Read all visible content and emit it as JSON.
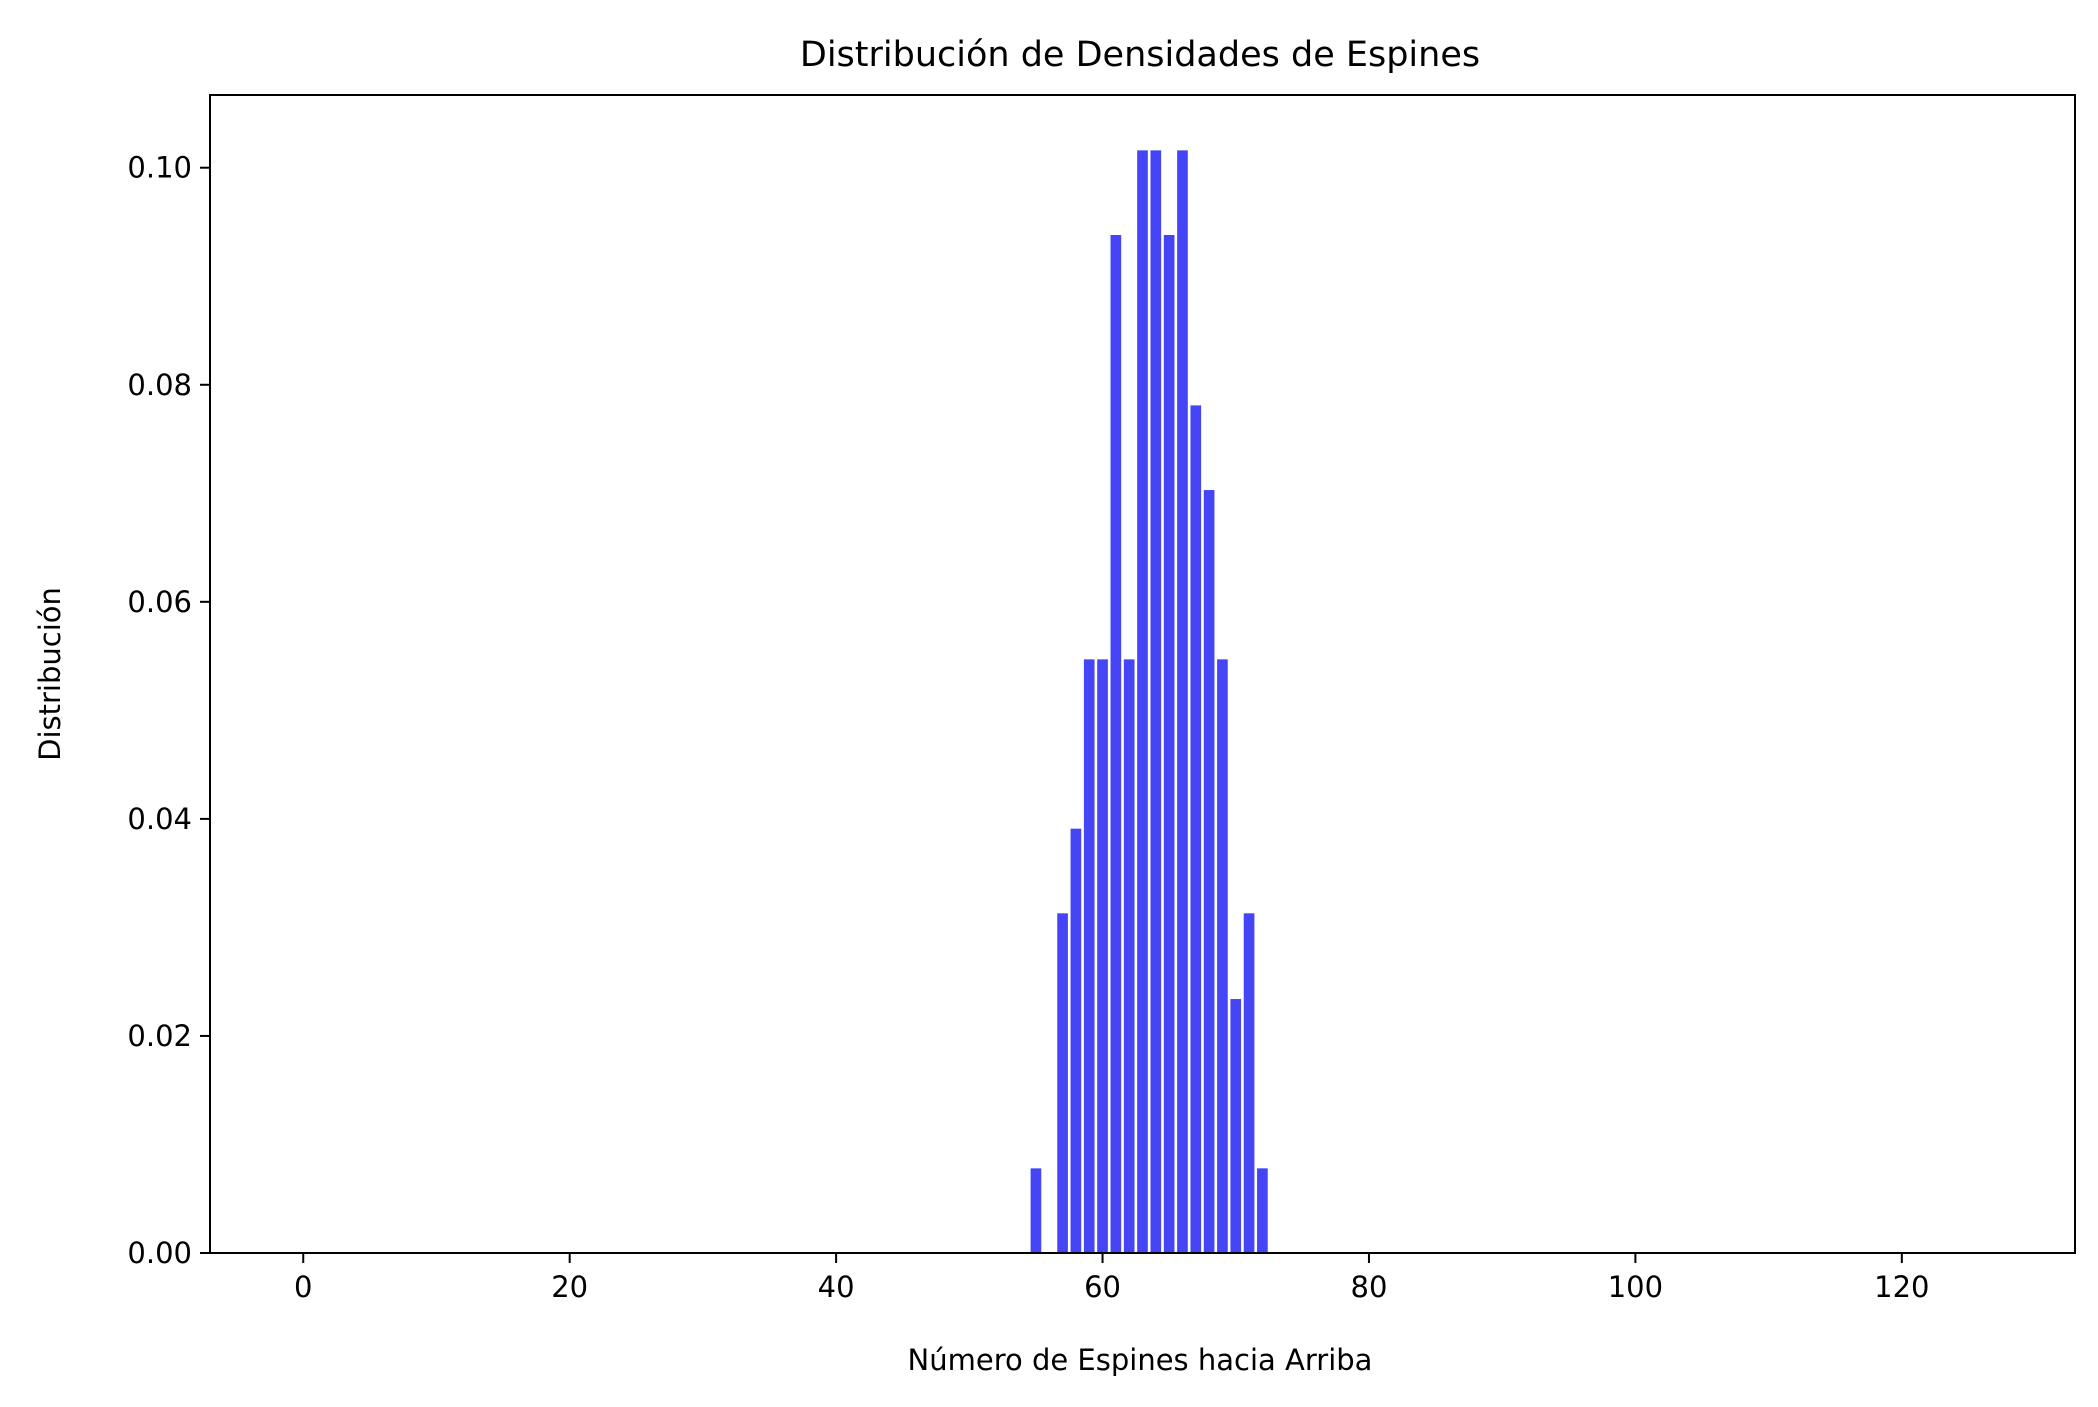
{
  "chart_data": {
    "type": "bar",
    "title": "Distribución de Densidades de Espines",
    "xlabel": "Número de Espines hacia Arriba",
    "ylabel": "Distribución",
    "xlim": [
      -7,
      133
    ],
    "ylim": [
      0,
      0.1067
    ],
    "xticks": [
      0,
      20,
      40,
      60,
      80,
      100,
      120
    ],
    "xtick_labels": [
      "0",
      "20",
      "40",
      "60",
      "80",
      "100",
      "120"
    ],
    "yticks": [
      0.0,
      0.02,
      0.04,
      0.06,
      0.08,
      0.1
    ],
    "ytick_labels": [
      "0.00",
      "0.02",
      "0.04",
      "0.06",
      "0.08",
      "0.10"
    ],
    "bar_color": "#4545f5",
    "bar_width": 0.8,
    "grid": false,
    "x": [
      55,
      56,
      57,
      58,
      59,
      60,
      61,
      62,
      63,
      64,
      65,
      66,
      67,
      68,
      69,
      70,
      71,
      72
    ],
    "values": [
      0.0078,
      0.0,
      0.0313,
      0.0391,
      0.0547,
      0.0547,
      0.0938,
      0.0547,
      0.1016,
      0.1016,
      0.0938,
      0.1016,
      0.0781,
      0.0703,
      0.0547,
      0.0234,
      0.0313,
      0.0078
    ]
  }
}
